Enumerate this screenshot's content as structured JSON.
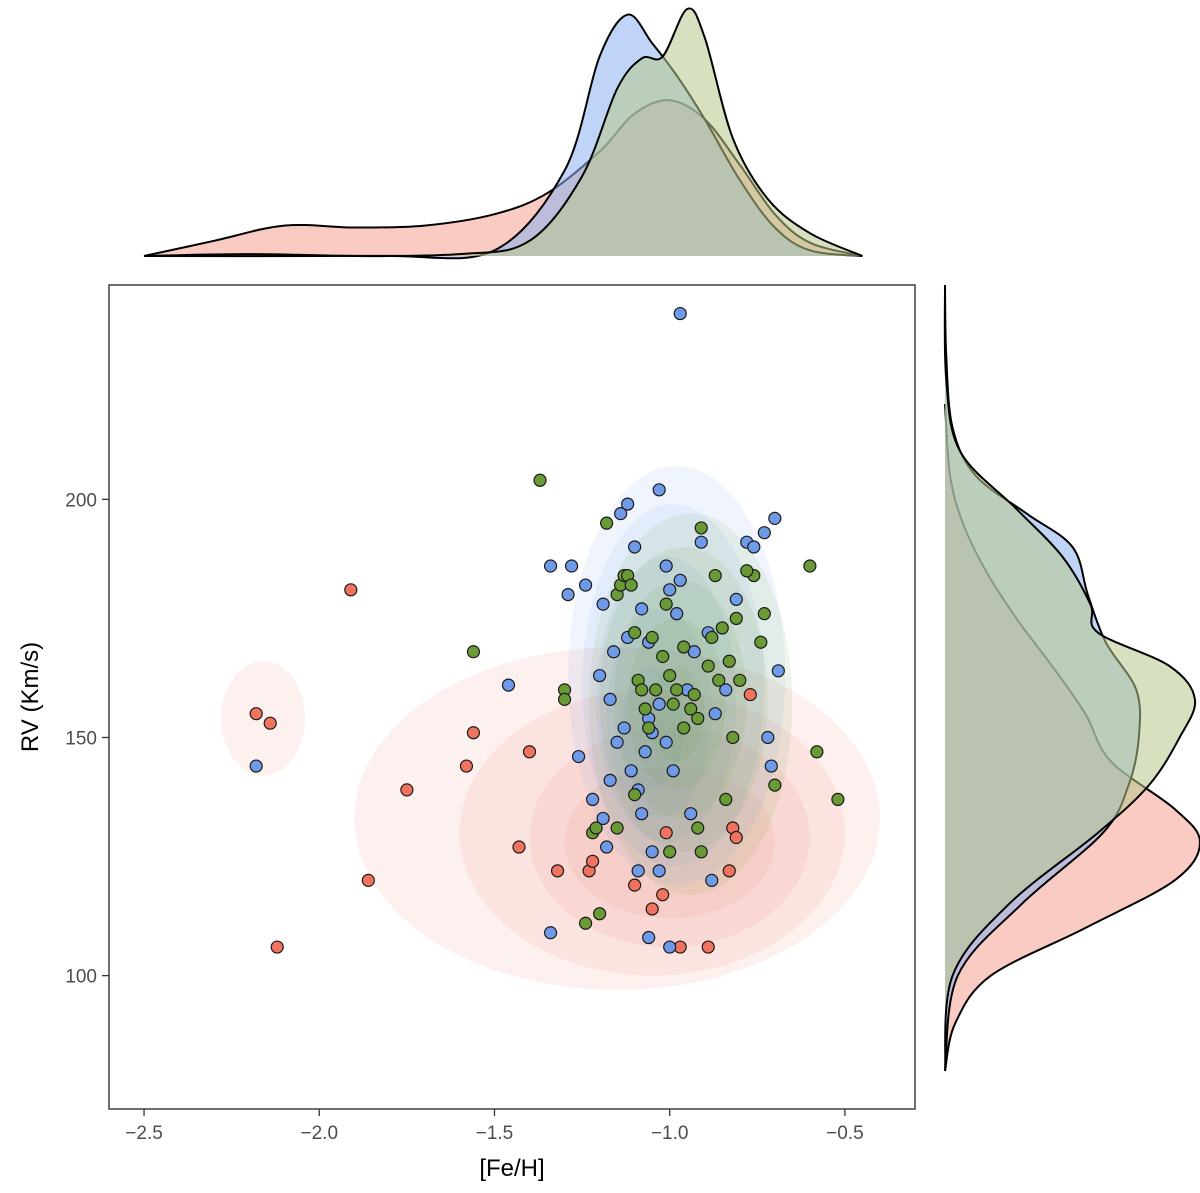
{
  "chart_data": {
    "type": "scatter",
    "xlabel": "[Fe/H]",
    "ylabel": "RV (Km/s)",
    "xlim": [
      -2.6,
      -0.3
    ],
    "ylim": [
      72,
      245
    ],
    "x_ticks": [
      {
        "value": -2.5,
        "label": "−2.5"
      },
      {
        "value": -2.0,
        "label": "−2.0"
      },
      {
        "value": -1.5,
        "label": "−1.5"
      },
      {
        "value": -1.0,
        "label": "−1.0"
      },
      {
        "value": -0.5,
        "label": "−0.5"
      }
    ],
    "y_ticks": [
      {
        "value": 100,
        "label": "100"
      },
      {
        "value": 150,
        "label": "150"
      },
      {
        "value": 200,
        "label": "200"
      }
    ],
    "marginals": {
      "top": "density of [Fe/H] per group",
      "right": "density of RV per group"
    },
    "series": [
      {
        "name": "red",
        "color": "#f0735f",
        "fill": "#f4a090",
        "points": [
          [
            -2.18,
            155
          ],
          [
            -2.14,
            153
          ],
          [
            -1.91,
            181
          ],
          [
            -1.86,
            120
          ],
          [
            -1.75,
            139
          ],
          [
            -2.12,
            106
          ],
          [
            -1.58,
            144
          ],
          [
            -1.56,
            151
          ],
          [
            -1.43,
            127
          ],
          [
            -1.4,
            147
          ],
          [
            -1.32,
            122
          ],
          [
            -1.23,
            122
          ],
          [
            -1.22,
            124
          ],
          [
            -1.05,
            114
          ],
          [
            -1.02,
            117
          ],
          [
            -0.97,
            106
          ],
          [
            -0.89,
            106
          ],
          [
            -0.83,
            122
          ],
          [
            -0.82,
            131
          ],
          [
            -0.81,
            129
          ],
          [
            -0.77,
            159
          ],
          [
            -1.01,
            130
          ],
          [
            -1.1,
            119
          ]
        ],
        "contours": [
          {
            "cx": -1.0,
            "cy": 128,
            "rx": 0.3,
            "ry": 16
          },
          {
            "cx": -1.0,
            "cy": 129,
            "rx": 0.4,
            "ry": 23
          },
          {
            "cx": -1.05,
            "cy": 130,
            "rx": 0.55,
            "ry": 30
          },
          {
            "cx": -1.15,
            "cy": 133,
            "rx": 0.75,
            "ry": 36
          },
          {
            "cx": -2.16,
            "cy": 154,
            "rx": 0.12,
            "ry": 12
          }
        ],
        "marg_x": [
          [
            -2.5,
            0.0
          ],
          [
            -2.3,
            0.08
          ],
          [
            -2.1,
            0.16
          ],
          [
            -1.9,
            0.15
          ],
          [
            -1.7,
            0.16
          ],
          [
            -1.5,
            0.22
          ],
          [
            -1.35,
            0.33
          ],
          [
            -1.2,
            0.55
          ],
          [
            -1.1,
            0.75
          ],
          [
            -1.0,
            0.82
          ],
          [
            -0.9,
            0.72
          ],
          [
            -0.8,
            0.48
          ],
          [
            -0.7,
            0.22
          ],
          [
            -0.6,
            0.07
          ],
          [
            -0.45,
            0.0
          ]
        ],
        "marg_y": [
          [
            80,
            0.0
          ],
          [
            90,
            0.04
          ],
          [
            100,
            0.18
          ],
          [
            110,
            0.55
          ],
          [
            120,
            0.9
          ],
          [
            128,
            1.0
          ],
          [
            135,
            0.9
          ],
          [
            145,
            0.65
          ],
          [
            155,
            0.55
          ],
          [
            165,
            0.42
          ],
          [
            175,
            0.28
          ],
          [
            185,
            0.16
          ],
          [
            195,
            0.07
          ],
          [
            205,
            0.02
          ],
          [
            220,
            0.0
          ]
        ]
      },
      {
        "name": "blue",
        "color": "#6f9ae8",
        "fill": "#8ab0f0",
        "points": [
          [
            -0.97,
            239
          ],
          [
            -2.18,
            144
          ],
          [
            -1.46,
            161
          ],
          [
            -1.34,
            109
          ],
          [
            -1.34,
            186
          ],
          [
            -1.28,
            186
          ],
          [
            -1.29,
            180
          ],
          [
            -1.26,
            146
          ],
          [
            -1.24,
            182
          ],
          [
            -1.19,
            178
          ],
          [
            -1.2,
            163
          ],
          [
            -1.17,
            158
          ],
          [
            -1.16,
            168
          ],
          [
            -1.14,
            197
          ],
          [
            -1.12,
            199
          ],
          [
            -1.1,
            190
          ],
          [
            -1.08,
            177
          ],
          [
            -1.06,
            154
          ],
          [
            -1.03,
            202
          ],
          [
            -1.01,
            186
          ],
          [
            -1.0,
            181
          ],
          [
            -0.98,
            176
          ],
          [
            -0.97,
            183
          ],
          [
            -0.95,
            160
          ],
          [
            -0.93,
            168
          ],
          [
            -0.91,
            191
          ],
          [
            -0.89,
            172
          ],
          [
            -0.87,
            155
          ],
          [
            -0.84,
            160
          ],
          [
            -0.81,
            179
          ],
          [
            -0.78,
            191
          ],
          [
            -0.76,
            190
          ],
          [
            -0.73,
            193
          ],
          [
            -0.7,
            196
          ],
          [
            -0.69,
            164
          ],
          [
            -0.72,
            150
          ],
          [
            -0.71,
            144
          ],
          [
            -1.22,
            137
          ],
          [
            -1.19,
            133
          ],
          [
            -1.17,
            141
          ],
          [
            -1.15,
            149
          ],
          [
            -1.13,
            152
          ],
          [
            -1.11,
            143
          ],
          [
            -1.09,
            139
          ],
          [
            -1.07,
            147
          ],
          [
            -1.05,
            151
          ],
          [
            -1.03,
            157
          ],
          [
            -1.01,
            149
          ],
          [
            -0.99,
            143
          ],
          [
            -1.18,
            127
          ],
          [
            -1.08,
            134
          ],
          [
            -1.05,
            126
          ],
          [
            -1.03,
            122
          ],
          [
            -1.09,
            122
          ],
          [
            -0.88,
            120
          ],
          [
            -0.94,
            134
          ],
          [
            -1.06,
            108
          ],
          [
            -1.0,
            106
          ],
          [
            -1.12,
            171
          ],
          [
            -1.06,
            170
          ]
        ],
        "contours": [
          {
            "cx": -1.05,
            "cy": 152,
            "rx": 0.09,
            "ry": 13
          },
          {
            "cx": -1.03,
            "cy": 155,
            "rx": 0.15,
            "ry": 22
          },
          {
            "cx": -1.01,
            "cy": 158,
            "rx": 0.2,
            "ry": 30
          },
          {
            "cx": -0.99,
            "cy": 161,
            "rx": 0.26,
            "ry": 38
          },
          {
            "cx": -0.98,
            "cy": 163,
            "rx": 0.31,
            "ry": 44
          }
        ],
        "marg_x": [
          [
            -2.5,
            0.0
          ],
          [
            -2.2,
            0.01
          ],
          [
            -1.8,
            0.0
          ],
          [
            -1.5,
            0.03
          ],
          [
            -1.3,
            0.45
          ],
          [
            -1.2,
            1.05
          ],
          [
            -1.12,
            1.27
          ],
          [
            -1.05,
            1.12
          ],
          [
            -0.98,
            0.95
          ],
          [
            -0.9,
            0.72
          ],
          [
            -0.8,
            0.4
          ],
          [
            -0.7,
            0.15
          ],
          [
            -0.6,
            0.03
          ],
          [
            -0.45,
            0.0
          ]
        ],
        "marg_y": [
          [
            80,
            0.0
          ],
          [
            100,
            0.05
          ],
          [
            115,
            0.3
          ],
          [
            130,
            0.62
          ],
          [
            140,
            0.72
          ],
          [
            150,
            0.76
          ],
          [
            160,
            0.75
          ],
          [
            170,
            0.63
          ],
          [
            180,
            0.56
          ],
          [
            190,
            0.5
          ],
          [
            197,
            0.32
          ],
          [
            205,
            0.12
          ],
          [
            215,
            0.03
          ],
          [
            230,
            0.005
          ],
          [
            245,
            0.0
          ]
        ]
      },
      {
        "name": "green",
        "color": "#6a9a36",
        "fill": "#b8c98a",
        "points": [
          [
            -1.37,
            204
          ],
          [
            -1.56,
            168
          ],
          [
            -1.3,
            160
          ],
          [
            -1.3,
            158
          ],
          [
            -1.22,
            130
          ],
          [
            -1.21,
            131
          ],
          [
            -1.24,
            111
          ],
          [
            -1.2,
            113
          ],
          [
            -1.18,
            195
          ],
          [
            -1.15,
            180
          ],
          [
            -1.14,
            182
          ],
          [
            -1.13,
            184
          ],
          [
            -1.12,
            184
          ],
          [
            -1.11,
            182
          ],
          [
            -1.1,
            172
          ],
          [
            -1.09,
            162
          ],
          [
            -1.08,
            160
          ],
          [
            -1.07,
            156
          ],
          [
            -1.05,
            171
          ],
          [
            -1.04,
            160
          ],
          [
            -1.02,
            167
          ],
          [
            -1.01,
            178
          ],
          [
            -1.0,
            163
          ],
          [
            -0.99,
            157
          ],
          [
            -0.98,
            160
          ],
          [
            -0.96,
            169
          ],
          [
            -0.94,
            156
          ],
          [
            -0.93,
            159
          ],
          [
            -0.92,
            154
          ],
          [
            -0.91,
            194
          ],
          [
            -0.89,
            165
          ],
          [
            -0.88,
            171
          ],
          [
            -0.86,
            162
          ],
          [
            -0.85,
            173
          ],
          [
            -0.83,
            166
          ],
          [
            -0.82,
            150
          ],
          [
            -0.81,
            175
          ],
          [
            -0.8,
            162
          ],
          [
            -0.76,
            184
          ],
          [
            -0.74,
            170
          ],
          [
            -0.73,
            176
          ],
          [
            -0.7,
            140
          ],
          [
            -0.6,
            186
          ],
          [
            -0.58,
            147
          ],
          [
            -0.52,
            137
          ],
          [
            -0.84,
            137
          ],
          [
            -0.92,
            131
          ],
          [
            -0.91,
            126
          ],
          [
            -1.0,
            126
          ],
          [
            -1.15,
            131
          ],
          [
            -1.1,
            138
          ],
          [
            -0.87,
            184
          ],
          [
            -0.78,
            185
          ],
          [
            -1.06,
            152
          ],
          [
            -0.96,
            152
          ]
        ],
        "contours": [
          {
            "cx": -0.98,
            "cy": 155,
            "rx": 0.08,
            "ry": 10
          },
          {
            "cx": -0.98,
            "cy": 157,
            "rx": 0.14,
            "ry": 18
          },
          {
            "cx": -0.97,
            "cy": 158,
            "rx": 0.19,
            "ry": 25
          },
          {
            "cx": -0.96,
            "cy": 158,
            "rx": 0.24,
            "ry": 32
          },
          {
            "cx": -0.94,
            "cy": 157,
            "rx": 0.29,
            "ry": 40
          }
        ],
        "marg_x": [
          [
            -2.5,
            0.0
          ],
          [
            -2.0,
            0.0
          ],
          [
            -1.6,
            0.01
          ],
          [
            -1.4,
            0.08
          ],
          [
            -1.25,
            0.42
          ],
          [
            -1.15,
            0.88
          ],
          [
            -1.08,
            1.04
          ],
          [
            -1.02,
            1.05
          ],
          [
            -0.95,
            1.3
          ],
          [
            -0.9,
            1.15
          ],
          [
            -0.82,
            0.62
          ],
          [
            -0.72,
            0.3
          ],
          [
            -0.6,
            0.12
          ],
          [
            -0.45,
            0.0
          ]
        ],
        "marg_y": [
          [
            80,
            0.0
          ],
          [
            100,
            0.03
          ],
          [
            115,
            0.25
          ],
          [
            130,
            0.6
          ],
          [
            140,
            0.8
          ],
          [
            150,
            0.92
          ],
          [
            158,
            0.98
          ],
          [
            165,
            0.88
          ],
          [
            172,
            0.6
          ],
          [
            178,
            0.57
          ],
          [
            188,
            0.46
          ],
          [
            198,
            0.28
          ],
          [
            210,
            0.06
          ],
          [
            225,
            0.005
          ],
          [
            245,
            0.0
          ]
        ]
      }
    ]
  }
}
